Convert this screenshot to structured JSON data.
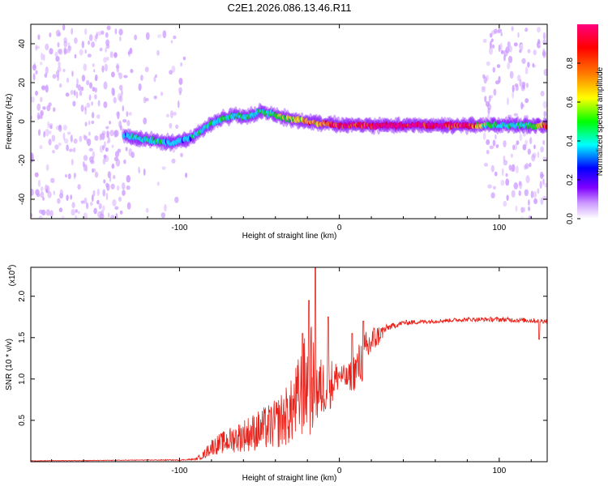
{
  "figure_title": "C2E1.2026.086.13.46.R11",
  "chart_data": [
    {
      "type": "heatmap",
      "title": "C2E1.2026.086.13.46.R11",
      "xlabel": "Height of straight line (km)",
      "ylabel": "Frequency (Hz)",
      "xlim": [
        -193,
        130
      ],
      "ylim": [
        -50,
        50
      ],
      "x_ticks": [
        -100,
        0,
        100
      ],
      "y_ticks": [
        -40,
        -20,
        0,
        20,
        40
      ],
      "x_tick_labels": [
        "-100",
        "0",
        "100"
      ],
      "y_tick_labels": [
        "-40",
        "-20",
        "0",
        "20",
        "40"
      ],
      "colorbar": {
        "label": "Normalized spectral amplitude",
        "range": [
          0,
          1
        ],
        "ticks": [
          0.0,
          0.2,
          0.4,
          0.6,
          0.8
        ],
        "tick_labels": [
          "0.0",
          "0.2",
          "0.4",
          "0.6",
          "0.8"
        ],
        "colors": [
          "#ffffff",
          "#cc99ff",
          "#7f00ff",
          "#0000ff",
          "#00ffff",
          "#00ff00",
          "#ffff00",
          "#ff8000",
          "#ff0000",
          "#ff0080"
        ]
      },
      "ridge_track": {
        "x": [
          -135,
          -125,
          -115,
          -105,
          -95,
          -88,
          -80,
          -72,
          -65,
          -58,
          -50,
          -42,
          -35,
          -28,
          -20,
          -12,
          -5,
          0,
          10,
          20,
          40,
          60,
          80,
          90,
          100,
          110,
          120,
          130
        ],
        "y": [
          -7,
          -9,
          -10,
          -11,
          -9,
          -6,
          -1,
          2,
          3,
          2,
          5,
          4,
          2,
          1,
          0,
          -1,
          -1,
          -2,
          -2,
          -2,
          -2,
          -2,
          -2,
          -2,
          -2,
          -2,
          -2,
          -2
        ],
        "amplitude": [
          0.45,
          0.5,
          0.5,
          0.45,
          0.45,
          0.5,
          0.55,
          0.55,
          0.5,
          0.5,
          0.55,
          0.55,
          0.6,
          0.65,
          0.85,
          0.7,
          0.9,
          0.95,
          0.95,
          1.0,
          1.0,
          1.0,
          1.0,
          0.6,
          0.5,
          0.5,
          0.55,
          0.9
        ]
      },
      "noise_regions": [
        {
          "x": [
            -193,
            -135
          ],
          "amplitude": 0.25
        },
        {
          "x": [
            -135,
            -95
          ],
          "amplitude": 0.12
        },
        {
          "x": [
            90,
            130
          ],
          "amplitude": 0.22
        }
      ]
    },
    {
      "type": "line",
      "xlabel": "Height of straight line (km)",
      "ylabel": "SNR (10 * v/v)",
      "y_scale_label": "(x10",
      "y_scale_exponent": "4",
      "y_scale_close": ")",
      "xlim": [
        -193,
        130
      ],
      "ylim": [
        0,
        2.35
      ],
      "x_ticks": [
        -100,
        0,
        100
      ],
      "y_ticks": [
        0.5,
        1.0,
        1.5,
        2.0
      ],
      "x_tick_labels": [
        "-100",
        "0",
        "100"
      ],
      "y_tick_labels": [
        "0.5",
        "1.0",
        "1.5",
        "2.0"
      ],
      "series": [
        {
          "name": "SNR",
          "color": "#e8221a",
          "envelope_x": [
            -193,
            -150,
            -120,
            -100,
            -90,
            -85,
            -80,
            -70,
            -60,
            -50,
            -40,
            -30,
            -22,
            -18,
            -14,
            -10,
            -5,
            0,
            5,
            10,
            15,
            20,
            30,
            40,
            60,
            80,
            100,
            130
          ],
          "envelope_y": [
            0.01,
            0.015,
            0.02,
            0.02,
            0.03,
            0.08,
            0.18,
            0.25,
            0.32,
            0.38,
            0.45,
            0.6,
            0.9,
            1.0,
            0.85,
            0.9,
            0.95,
            1.05,
            1.0,
            1.1,
            1.25,
            1.45,
            1.62,
            1.68,
            1.7,
            1.72,
            1.72,
            1.7
          ],
          "noise_amplitude": [
            0.004,
            0.004,
            0.005,
            0.006,
            0.01,
            0.05,
            0.1,
            0.15,
            0.2,
            0.25,
            0.3,
            0.4,
            0.6,
            0.7,
            0.45,
            0.35,
            0.3,
            0.15,
            0.15,
            0.25,
            0.3,
            0.2,
            0.04,
            0.03,
            0.025,
            0.025,
            0.03,
            0.03
          ],
          "peaks": [
            {
              "x": -15,
              "y": 2.36
            },
            {
              "x": -19,
              "y": 1.95
            },
            {
              "x": -23,
              "y": 1.55
            },
            {
              "x": -7,
              "y": 1.75
            },
            {
              "x": 8,
              "y": 1.55
            },
            {
              "x": 15,
              "y": 1.7
            },
            {
              "x": 125,
              "y": 1.48
            }
          ]
        }
      ]
    }
  ]
}
